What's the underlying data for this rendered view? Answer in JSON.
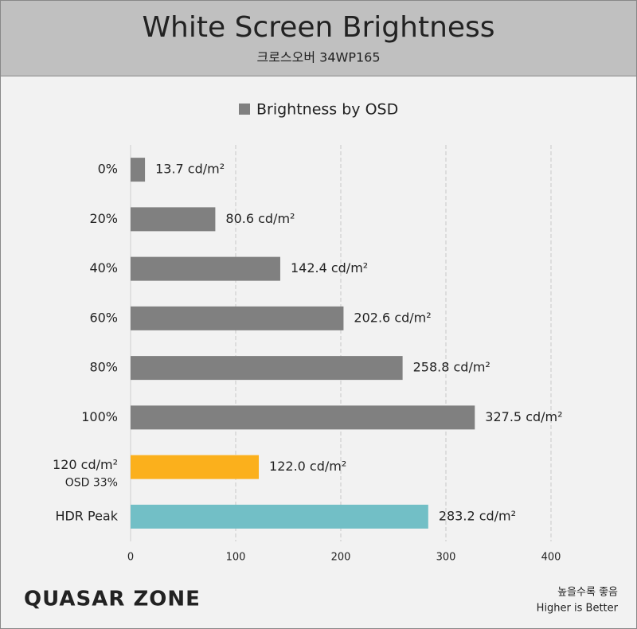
{
  "chart_data": {
    "type": "bar",
    "orientation": "horizontal",
    "title": "White Screen Brightness",
    "subtitle": "크로스오버 34WP165",
    "categories": [
      "0%",
      "20%",
      "40%",
      "60%",
      "80%",
      "100%",
      "120 cd/m²",
      "HDR Peak"
    ],
    "category_notes": [
      null,
      null,
      null,
      null,
      null,
      null,
      "OSD 33%",
      null
    ],
    "series": [
      {
        "name": "Brightness by OSD",
        "color": "#808080",
        "values": [
          13.7,
          80.6,
          142.4,
          202.6,
          258.8,
          327.5,
          122.0,
          283.2
        ],
        "value_labels": [
          "13.7 cd/m²",
          "80.6 cd/m²",
          "142.4 cd/m²",
          "202.6 cd/m²",
          "258.8 cd/m²",
          "327.5 cd/m²",
          "122.0 cd/m²",
          "283.2 cd/m²"
        ],
        "colors": [
          "#808080",
          "#808080",
          "#808080",
          "#808080",
          "#808080",
          "#808080",
          "#fbb01c",
          "#72bfc6"
        ]
      }
    ],
    "xlim": [
      0,
      450
    ],
    "xticks": [
      0,
      100,
      200,
      300,
      400
    ],
    "grid": true,
    "legend": "top"
  },
  "footer": {
    "logo": "QUASAR ZONE",
    "note": [
      "높을수록 좋음",
      "Higher is Better"
    ]
  }
}
